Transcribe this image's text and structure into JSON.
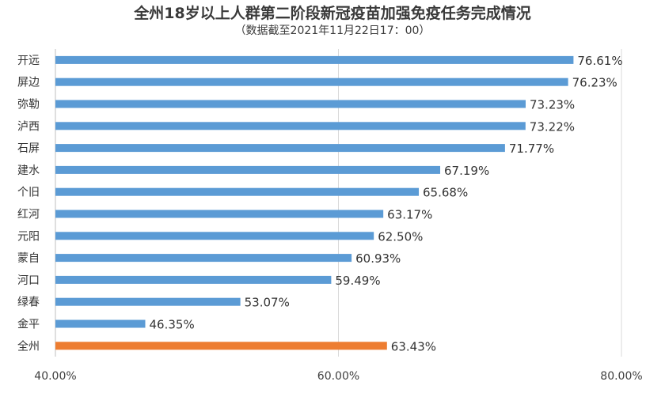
{
  "chart_data": {
    "type": "bar",
    "orientation": "horizontal",
    "title": "全州18岁以上人群第二阶段新冠疫苗加强免疫任务完成情况",
    "subtitle": "（数据截至2021年11月22日17：00）",
    "categories": [
      "开远",
      "屏边",
      "弥勒",
      "泸西",
      "石屏",
      "建水",
      "个旧",
      "红河",
      "元阳",
      "蒙自",
      "河口",
      "绿春",
      "金平",
      "全州"
    ],
    "values": [
      76.61,
      76.23,
      73.23,
      73.22,
      71.77,
      67.19,
      65.68,
      63.17,
      62.5,
      60.93,
      59.49,
      53.07,
      46.35,
      63.43
    ],
    "value_labels": [
      "76.61%",
      "76.23%",
      "73.23%",
      "73.22%",
      "71.77%",
      "67.19%",
      "65.68%",
      "63.17%",
      "62.50%",
      "60.93%",
      "59.49%",
      "53.07%",
      "46.35%",
      "63.43%"
    ],
    "xlim": [
      40,
      80
    ],
    "x_ticks": [
      40,
      60,
      80
    ],
    "x_tick_labels": [
      "40.00%",
      "60.00%",
      "80.00%"
    ],
    "grid": true,
    "colors": {
      "default": "#5b9bd5",
      "highlight": "#ed7d31",
      "grid": "#d9d9d9",
      "axis": "#bfbfbf"
    },
    "highlight_category": "全州"
  }
}
